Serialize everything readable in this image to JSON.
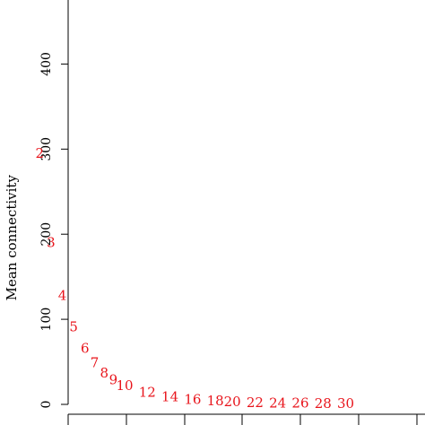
{
  "chart_data": {
    "type": "scatter",
    "marker": "text-label",
    "marker_color": "#e8141b",
    "ylabel": "Mean connectivity",
    "yticks": [
      0,
      100,
      200,
      300,
      400
    ],
    "ylim": [
      -10,
      480
    ],
    "xlim": [
      0.3,
      1.05
    ],
    "grid": false,
    "points": [
      {
        "label": "2",
        "x": 0.37,
        "y": 294
      },
      {
        "label": "3",
        "x": 0.39,
        "y": 189
      },
      {
        "label": "4",
        "x": 0.41,
        "y": 127
      },
      {
        "label": "5",
        "x": 0.43,
        "y": 90
      },
      {
        "label": "6",
        "x": 0.45,
        "y": 65
      },
      {
        "label": "7",
        "x": 0.467,
        "y": 48
      },
      {
        "label": "8",
        "x": 0.484,
        "y": 36
      },
      {
        "label": "9",
        "x": 0.5,
        "y": 28
      },
      {
        "label": "10",
        "x": 0.52,
        "y": 21
      },
      {
        "label": "12",
        "x": 0.56,
        "y": 13
      },
      {
        "label": "14",
        "x": 0.6,
        "y": 8
      },
      {
        "label": "16",
        "x": 0.64,
        "y": 5
      },
      {
        "label": "18",
        "x": 0.68,
        "y": 3
      },
      {
        "label": "20",
        "x": 0.71,
        "y": 2
      },
      {
        "label": "22",
        "x": 0.75,
        "y": 1
      },
      {
        "label": "24",
        "x": 0.79,
        "y": 0.5
      },
      {
        "label": "26",
        "x": 0.83,
        "y": 0.3
      },
      {
        "label": "28",
        "x": 0.87,
        "y": 0.2
      },
      {
        "label": "30",
        "x": 0.91,
        "y": 0.1
      }
    ]
  }
}
